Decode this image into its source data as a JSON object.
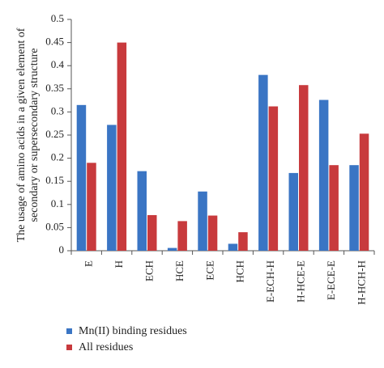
{
  "chart_data": {
    "type": "bar",
    "title": "",
    "xlabel": "",
    "ylabel_lines": [
      "The usage of amino acids in a given element of",
      "secondary or supersecondary structure"
    ],
    "categories": [
      "E",
      "H",
      "ECH",
      "HCE",
      "ECE",
      "HCH",
      "E-ECH-H",
      "H-HCE-E",
      "E-ECE-E",
      "H-HCH-H"
    ],
    "series": [
      {
        "name": "Mn(II) binding residues",
        "color": "#3a75c4",
        "values": [
          0.315,
          0.272,
          0.172,
          0.006,
          0.128,
          0.015,
          0.38,
          0.168,
          0.326,
          0.185
        ]
      },
      {
        "name": "All residues",
        "color": "#c83a3d",
        "values": [
          0.19,
          0.45,
          0.077,
          0.064,
          0.076,
          0.04,
          0.312,
          0.358,
          0.185,
          0.253
        ]
      }
    ],
    "ylim": [
      0,
      0.5
    ],
    "yticks": [
      0,
      0.05,
      0.1,
      0.15,
      0.2,
      0.25,
      0.3,
      0.35,
      0.4,
      0.45,
      0.5
    ],
    "ytick_labels": [
      "0",
      "0.05",
      "0.1",
      "0.15",
      "0.2",
      "0.25",
      "0.3",
      "0.35",
      "0.4",
      "0.45",
      "0.5"
    ],
    "grid": false,
    "legend_position": "bottom-left"
  }
}
